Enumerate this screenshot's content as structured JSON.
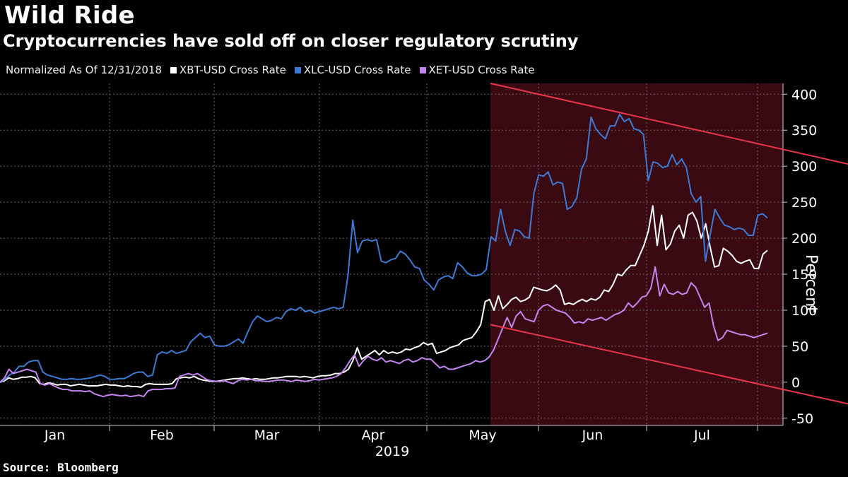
{
  "title": "Wild Ride",
  "subtitle": "Cryptocurrencies have sold off on closer regulatory scrutiny",
  "legend_note": "Normalized As Of 12/31/2018",
  "source": "Source: Bloomberg",
  "chart_data": {
    "type": "line",
    "ylabel": "Percent",
    "ylim": [
      -60,
      415
    ],
    "yticks": [
      400,
      350,
      300,
      250,
      200,
      150,
      100,
      50,
      0,
      -50
    ],
    "month_labels": [
      "Jan",
      "Feb",
      "Mar",
      "Apr",
      "May",
      "Jun",
      "Jul"
    ],
    "year_label": "2019",
    "grid": true,
    "highlight": {
      "from_month": "Mid-May",
      "color": "#3a0a12",
      "trend_line_color": "#e8364b",
      "upper_line": [
        [
          4.57,
          415
        ],
        [
          7.3,
          303
        ]
      ],
      "lower_line": [
        [
          4.57,
          80
        ],
        [
          7.3,
          -30
        ]
      ]
    },
    "series": [
      {
        "name": "XBT-USD Cross Rate",
        "color": "#ffffff",
        "values": [
          0,
          2,
          6,
          4,
          5,
          7,
          7,
          8,
          6,
          -2,
          -3,
          -1,
          -2,
          -4,
          -3,
          -3,
          -5,
          -4,
          -3,
          -4,
          -5,
          -5,
          -5,
          -4,
          -3,
          -4,
          -4,
          -5,
          -6,
          -5,
          -6,
          -6,
          -7,
          -3,
          -2,
          -3,
          -3,
          -3,
          -3,
          -2,
          5,
          6,
          7,
          6,
          8,
          5,
          3,
          2,
          1,
          1,
          2,
          3,
          4,
          5,
          5,
          6,
          5,
          4,
          5,
          4,
          4,
          5,
          6,
          6,
          7,
          8,
          8,
          8,
          7,
          8,
          7,
          6,
          8,
          9,
          9,
          10,
          12,
          12,
          14,
          18,
          30,
          48,
          32,
          36,
          40,
          44,
          38,
          44,
          40,
          42,
          40,
          42,
          46,
          45,
          48,
          50,
          55,
          52,
          54,
          40,
          42,
          44,
          48,
          50,
          52,
          58,
          60,
          62,
          70,
          80,
          112,
          115,
          100,
          120,
          102,
          108,
          115,
          118,
          112,
          114,
          118,
          132,
          130,
          128,
          127,
          130,
          135,
          128,
          108,
          110,
          108,
          112,
          115,
          112,
          116,
          114,
          118,
          128,
          126,
          136,
          150,
          148,
          156,
          162,
          162,
          176,
          190,
          210,
          245,
          190,
          232,
          184,
          192,
          210,
          218,
          200,
          232,
          236,
          224,
          200,
          220,
          188,
          160,
          162,
          186,
          182,
          176,
          168,
          165,
          168,
          170,
          158,
          158,
          178,
          183
        ]
      },
      {
        "name": "XLC-USD Cross Rate",
        "color": "#3d7ad6",
        "values": [
          0,
          4,
          10,
          14,
          22,
          22,
          28,
          30,
          30,
          14,
          10,
          8,
          6,
          4,
          4,
          5,
          4,
          4,
          5,
          6,
          8,
          10,
          8,
          4,
          4,
          5,
          5,
          8,
          12,
          14,
          14,
          8,
          10,
          38,
          42,
          40,
          44,
          40,
          42,
          44,
          56,
          62,
          68,
          62,
          64,
          52,
          50,
          50,
          52,
          56,
          60,
          54,
          70,
          84,
          92,
          88,
          84,
          86,
          90,
          88,
          98,
          102,
          100,
          104,
          98,
          100,
          96,
          98,
          100,
          102,
          104,
          102,
          104,
          148,
          225,
          180,
          196,
          198,
          196,
          198,
          168,
          166,
          170,
          172,
          182,
          178,
          170,
          160,
          158,
          142,
          136,
          128,
          142,
          146,
          148,
          144,
          166,
          160,
          152,
          148,
          148,
          150,
          156,
          202,
          196,
          240,
          210,
          190,
          212,
          210,
          202,
          200,
          262,
          288,
          286,
          292,
          274,
          278,
          276,
          240,
          244,
          256,
          296,
          310,
          368,
          352,
          344,
          338,
          356,
          356,
          372,
          362,
          366,
          352,
          350,
          344,
          280,
          306,
          304,
          298,
          300,
          316,
          302,
          310,
          298,
          262,
          250,
          258,
          168,
          206,
          240,
          228,
          218,
          216,
          212,
          214,
          212,
          204,
          204,
          232,
          234,
          228
        ]
      },
      {
        "name": "XET-USD Cross Rate",
        "color": "#c585f0",
        "values": [
          0,
          6,
          18,
          12,
          14,
          16,
          18,
          16,
          14,
          -2,
          -4,
          -2,
          -5,
          -8,
          -10,
          -10,
          -12,
          -12,
          -12,
          -13,
          -12,
          -16,
          -18,
          -20,
          -18,
          -17,
          -18,
          -19,
          -18,
          -20,
          -19,
          -18,
          -20,
          -12,
          -10,
          -10,
          -10,
          -9,
          -9,
          -8,
          8,
          10,
          12,
          10,
          12,
          8,
          4,
          2,
          1,
          1,
          2,
          0,
          -2,
          2,
          4,
          3,
          4,
          2,
          2,
          1,
          1,
          2,
          3,
          3,
          2,
          1,
          3,
          2,
          1,
          2,
          4,
          3,
          4,
          5,
          6,
          8,
          12,
          20,
          30,
          38,
          22,
          30,
          36,
          32,
          30,
          34,
          28,
          30,
          28,
          26,
          30,
          32,
          28,
          30,
          34,
          32,
          32,
          26,
          20,
          22,
          18,
          18,
          20,
          22,
          24,
          26,
          30,
          28,
          30,
          35,
          45,
          60,
          75,
          90,
          76,
          92,
          98,
          88,
          86,
          84,
          100,
          106,
          108,
          104,
          100,
          98,
          96,
          90,
          82,
          84,
          82,
          88,
          86,
          88,
          90,
          86,
          90,
          94,
          96,
          100,
          110,
          104,
          110,
          118,
          120,
          130,
          160,
          120,
          136,
          124,
          122,
          126,
          122,
          124,
          138,
          132,
          118,
          104,
          110,
          78,
          58,
          62,
          72,
          70,
          68,
          66,
          66,
          64,
          62,
          64,
          66,
          68
        ]
      }
    ]
  }
}
